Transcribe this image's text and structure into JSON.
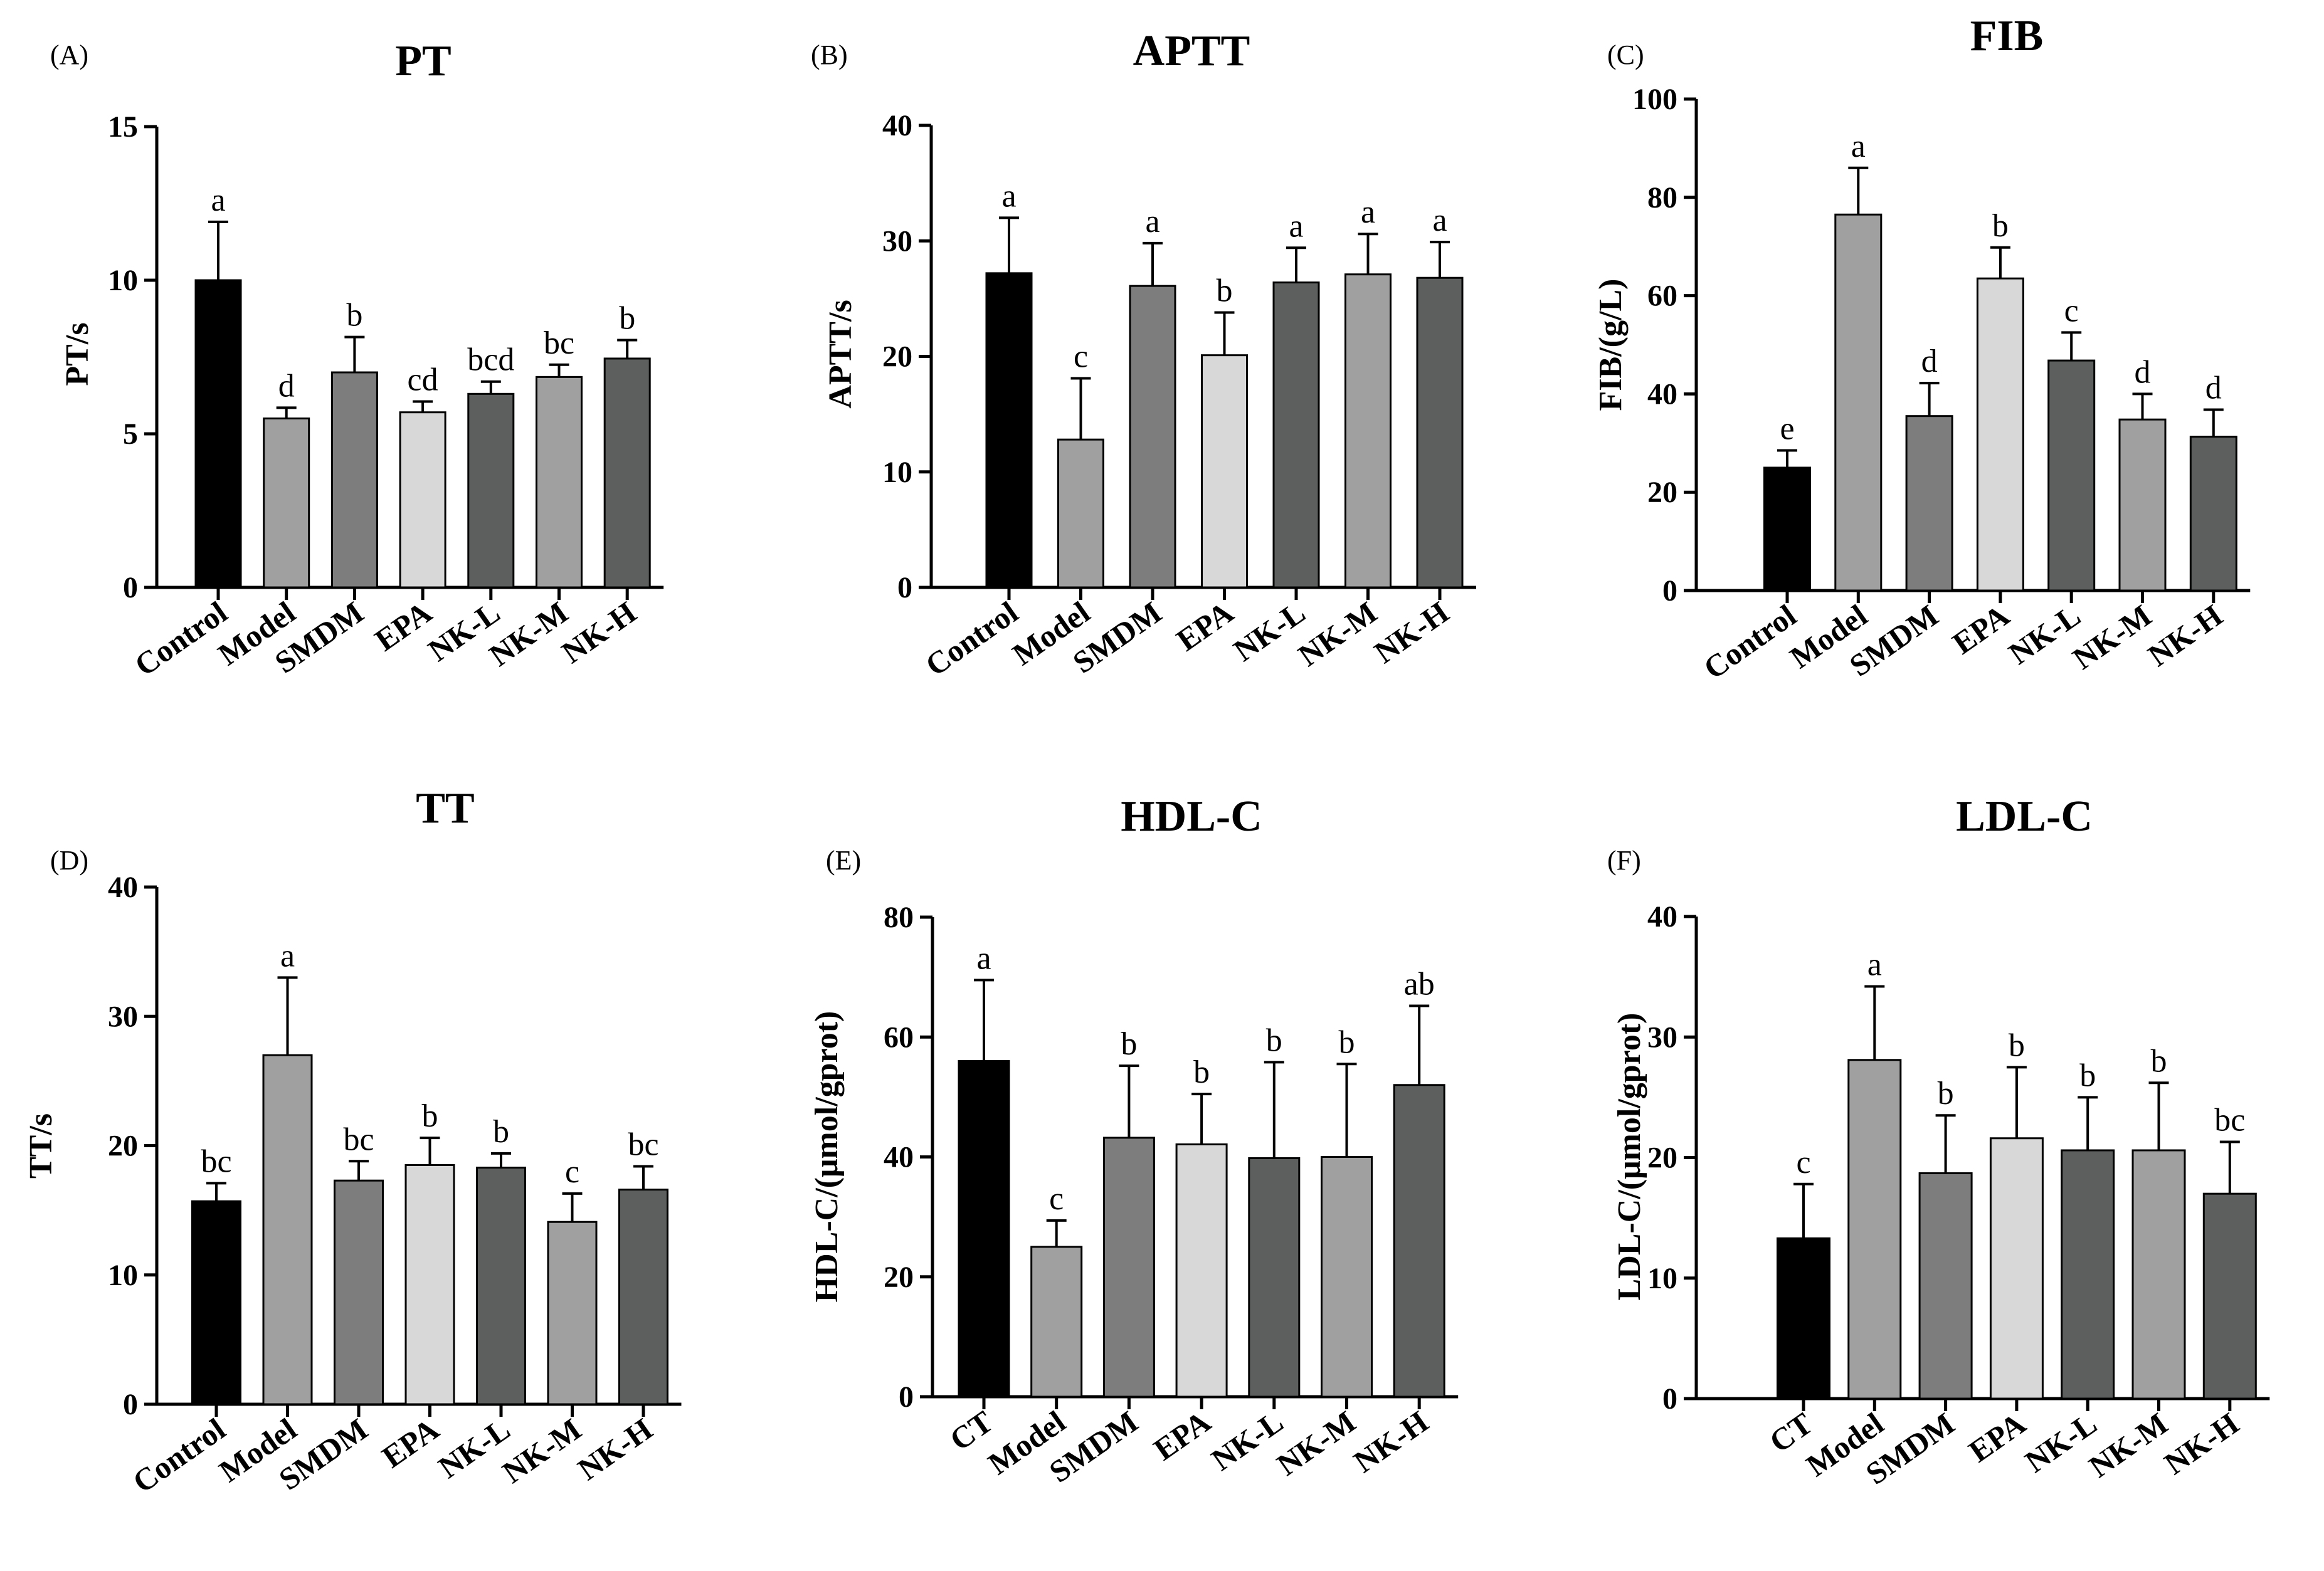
{
  "colors": [
    "#000000",
    "#a0a0a0",
    "#7d7d7d",
    "#d8d8d8",
    "#5d5f5f",
    "#a0a0a0",
    "#5d5f5f"
  ],
  "chart_data": [
    {
      "type": "bar",
      "panel": "(A)",
      "title": "PT",
      "ylabel": "PT/s",
      "xlabel": "",
      "ylim": [
        0,
        15
      ],
      "yticks": [
        0,
        5,
        10,
        15
      ],
      "categories": [
        "Control",
        "Model",
        "SMDM",
        "EPA",
        "NK-L",
        "NK-M",
        "NK-H"
      ],
      "values": [
        10.0,
        5.5,
        7.0,
        5.7,
        6.3,
        6.85,
        7.45
      ],
      "errors": [
        1.9,
        0.35,
        1.15,
        0.35,
        0.4,
        0.4,
        0.6
      ],
      "letters": [
        "a",
        "d",
        "b",
        "cd",
        "bcd",
        "bc",
        "b"
      ]
    },
    {
      "type": "bar",
      "panel": "(B)",
      "title": "APTT",
      "ylabel": "APTT/s",
      "xlabel": "",
      "ylim": [
        0,
        40
      ],
      "yticks": [
        0,
        10,
        20,
        30,
        40
      ],
      "categories": [
        "Control",
        "Model",
        "SMDM",
        "EPA",
        "NK-L",
        "NK-M",
        "NK-H"
      ],
      "values": [
        27.2,
        12.8,
        26.1,
        20.1,
        26.4,
        27.1,
        26.8
      ],
      "errors": [
        4.8,
        5.3,
        3.7,
        3.7,
        3.0,
        3.5,
        3.1
      ],
      "letters": [
        "a",
        "c",
        "a",
        "b",
        "a",
        "a",
        "a"
      ]
    },
    {
      "type": "bar",
      "panel": "(C)",
      "title": "FIB",
      "ylabel": "FIB/(g/L)",
      "xlabel": "",
      "ylim": [
        0,
        100
      ],
      "yticks": [
        0,
        20,
        40,
        60,
        80,
        100
      ],
      "categories": [
        "Control",
        "Model",
        "SMDM",
        "EPA",
        "NK-L",
        "NK-M",
        "NK-H"
      ],
      "values": [
        25.0,
        76.5,
        35.5,
        63.5,
        46.8,
        34.8,
        31.3
      ],
      "errors": [
        3.5,
        9.5,
        6.7,
        6.3,
        5.7,
        5.2,
        5.5
      ],
      "letters": [
        "e",
        "a",
        "d",
        "b",
        "c",
        "d",
        "d"
      ]
    },
    {
      "type": "bar",
      "panel": "(D)",
      "title": "TT",
      "ylabel": "TT/s",
      "xlabel": "",
      "ylim": [
        0,
        40
      ],
      "yticks": [
        0,
        10,
        20,
        30,
        40
      ],
      "categories": [
        "Control",
        "Model",
        "SMDM",
        "EPA",
        "NK-L",
        "NK-M",
        "NK-H"
      ],
      "values": [
        15.7,
        27.0,
        17.3,
        18.5,
        18.3,
        14.1,
        16.6
      ],
      "errors": [
        1.4,
        6.0,
        1.5,
        2.1,
        1.1,
        2.2,
        1.8
      ],
      "letters": [
        "bc",
        "a",
        "bc",
        "b",
        "b",
        "c",
        "bc"
      ]
    },
    {
      "type": "bar",
      "panel": "(E)",
      "title": "HDL-C",
      "ylabel": "HDL-C/(μmol/gprot)",
      "xlabel": "",
      "ylim": [
        0,
        80
      ],
      "yticks": [
        0,
        20,
        40,
        60,
        80
      ],
      "categories": [
        "CT",
        "Model",
        "SMDM",
        "EPA",
        "NK-L",
        "NK-M",
        "NK-H"
      ],
      "values": [
        56.0,
        25.0,
        43.2,
        42.1,
        39.8,
        40.0,
        52.0
      ],
      "errors": [
        13.5,
        4.4,
        12.0,
        8.4,
        16.0,
        15.5,
        13.2
      ],
      "letters": [
        "a",
        "c",
        "b",
        "b",
        "b",
        "b",
        "ab"
      ]
    },
    {
      "type": "bar",
      "panel": "(F)",
      "title": "LDL-C",
      "ylabel": "LDL-C/(μmol/gprot)",
      "xlabel": "",
      "ylim": [
        0,
        40
      ],
      "yticks": [
        0,
        10,
        20,
        30,
        40
      ],
      "categories": [
        "CT",
        "Model",
        "SMDM",
        "EPA",
        "NK-L",
        "NK-M",
        "NK-H"
      ],
      "values": [
        13.3,
        28.1,
        18.7,
        21.6,
        20.6,
        20.6,
        17.0
      ],
      "errors": [
        4.5,
        6.1,
        4.8,
        5.9,
        4.4,
        5.6,
        4.3
      ],
      "letters": [
        "c",
        "a",
        "b",
        "b",
        "b",
        "b",
        "bc"
      ]
    }
  ]
}
